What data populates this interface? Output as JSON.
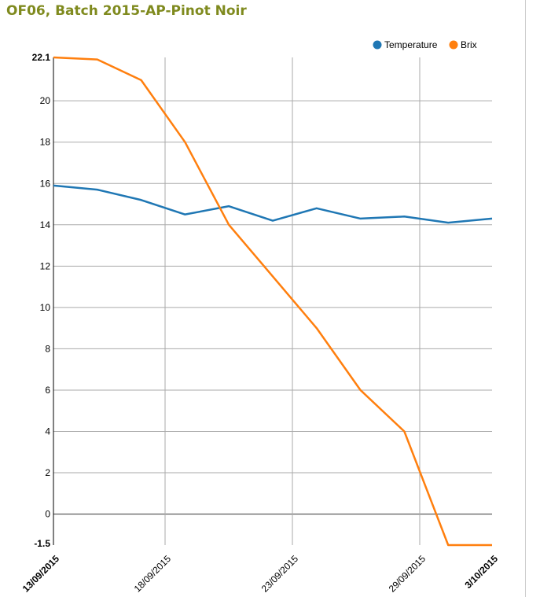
{
  "title": "OF06, Batch 2015-AP-Pinot Noir",
  "chart_data": {
    "type": "line",
    "title": "",
    "xlabel": "",
    "ylabel": "",
    "ylim": [
      -1.5,
      22.1
    ],
    "y_ticks": [
      "22.1",
      "20",
      "18",
      "16",
      "14",
      "12",
      "10",
      "8",
      "6",
      "4",
      "2",
      "0",
      "-1.5"
    ],
    "x_ticks": [
      "13/09/2015",
      "18/09/2015",
      "23/09/2015",
      "29/09/2015",
      "3/10/2015"
    ],
    "x_range": [
      "13/09/2015",
      "3/10/2015"
    ],
    "grid": true,
    "legend_position": "top-right",
    "series": [
      {
        "name": "Temperature",
        "color": "#1f77b4",
        "values": [
          15.9,
          15.7,
          15.2,
          14.5,
          14.9,
          14.2,
          14.8,
          14.3,
          14.4,
          14.1,
          14.3
        ]
      },
      {
        "name": "Brix",
        "color": "#ff7f0e",
        "values": [
          22.1,
          22.0,
          21.0,
          18.0,
          14.0,
          11.5,
          9.0,
          6.0,
          4.0,
          -1.5,
          -1.5
        ]
      }
    ]
  }
}
